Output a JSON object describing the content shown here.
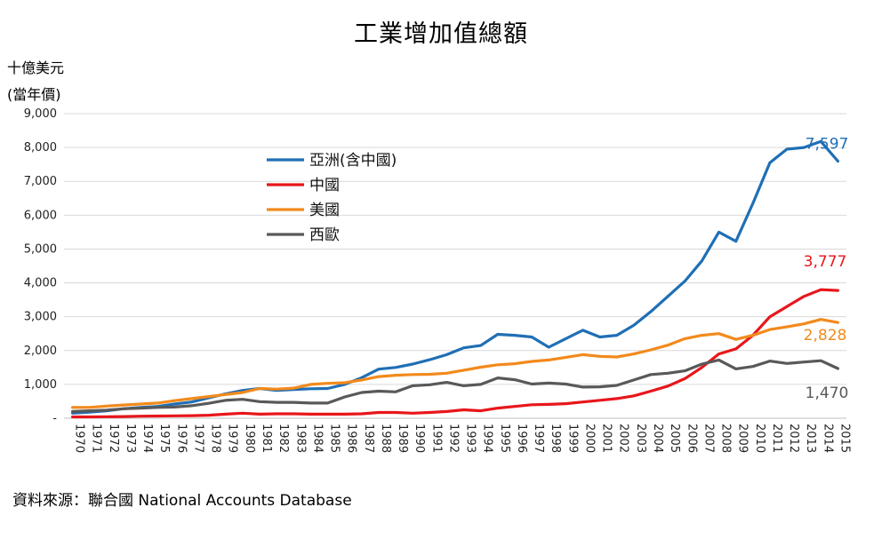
{
  "chart_data": {
    "type": "line",
    "title": "工業增加值總額",
    "ylabel_line1": "十億美元",
    "ylabel_line2": "(當年價)",
    "source": "資料來源：聯合國 National Accounts Database",
    "ylim": [
      0,
      9000
    ],
    "yticks": [
      {
        "value": 0,
        "label": "-"
      },
      {
        "value": 1000,
        "label": "1,000"
      },
      {
        "value": 2000,
        "label": "2,000"
      },
      {
        "value": 3000,
        "label": "3,000"
      },
      {
        "value": 4000,
        "label": "4,000"
      },
      {
        "value": 5000,
        "label": "5,000"
      },
      {
        "value": 6000,
        "label": "6,000"
      },
      {
        "value": 7000,
        "label": "7,000"
      },
      {
        "value": 8000,
        "label": "8,000"
      },
      {
        "value": 9000,
        "label": "9,000"
      }
    ],
    "grid": true,
    "legend_position": "upper-left inside plot",
    "x": [
      "1970",
      "1971",
      "1972",
      "1973",
      "1974",
      "1975",
      "1976",
      "1977",
      "1978",
      "1979",
      "1980",
      "1981",
      "1982",
      "1983",
      "1984",
      "1985",
      "1986",
      "1987",
      "1988",
      "1989",
      "1990",
      "1991",
      "1992",
      "1993",
      "1994",
      "1995",
      "1996",
      "1997",
      "1998",
      "1999",
      "2000",
      "2001",
      "2002",
      "2003",
      "2004",
      "2005",
      "2006",
      "2007",
      "2008",
      "2009",
      "2010",
      "2011",
      "2012",
      "2013",
      "2014",
      "2015"
    ],
    "series": [
      {
        "name": "亞洲(含中國)",
        "color": "#1F6FB5",
        "end_label": "7,597",
        "values": [
          150,
          180,
          220,
          280,
          320,
          350,
          420,
          480,
          600,
          720,
          820,
          880,
          820,
          850,
          870,
          880,
          1000,
          1200,
          1450,
          1500,
          1600,
          1730,
          1880,
          2080,
          2150,
          2480,
          2450,
          2400,
          2100,
          2350,
          2600,
          2400,
          2450,
          2750,
          3150,
          3600,
          4050,
          4650,
          5500,
          5230,
          6350,
          7550,
          7950,
          8000,
          8180,
          7597
        ]
      },
      {
        "name": "中國",
        "color": "#E8161B",
        "end_label": "3,777",
        "values": [
          40,
          40,
          45,
          50,
          60,
          65,
          70,
          75,
          90,
          120,
          150,
          120,
          130,
          130,
          120,
          120,
          120,
          130,
          170,
          170,
          150,
          170,
          200,
          250,
          220,
          300,
          350,
          400,
          410,
          430,
          480,
          530,
          580,
          660,
          800,
          950,
          1170,
          1500,
          1900,
          2050,
          2450,
          3000,
          3300,
          3600,
          3800,
          3777
        ]
      },
      {
        "name": "美國",
        "color": "#F28A1C",
        "end_label": "2,828",
        "values": [
          320,
          320,
          360,
          390,
          420,
          450,
          520,
          580,
          640,
          700,
          760,
          880,
          860,
          890,
          1000,
          1030,
          1050,
          1130,
          1230,
          1270,
          1290,
          1300,
          1330,
          1420,
          1510,
          1580,
          1610,
          1680,
          1720,
          1800,
          1880,
          1830,
          1810,
          1900,
          2020,
          2160,
          2350,
          2450,
          2500,
          2330,
          2450,
          2620,
          2700,
          2790,
          2920,
          2828
        ]
      },
      {
        "name": "西歐",
        "color": "#595959",
        "end_label": "1,470",
        "values": [
          200,
          220,
          240,
          280,
          300,
          320,
          330,
          370,
          440,
          530,
          560,
          490,
          470,
          470,
          450,
          450,
          630,
          760,
          800,
          780,
          960,
          990,
          1060,
          960,
          1000,
          1190,
          1140,
          1010,
          1040,
          1010,
          920,
          930,
          970,
          1130,
          1290,
          1330,
          1400,
          1600,
          1720,
          1460,
          1530,
          1690,
          1620,
          1660,
          1700,
          1470
        ]
      }
    ]
  }
}
